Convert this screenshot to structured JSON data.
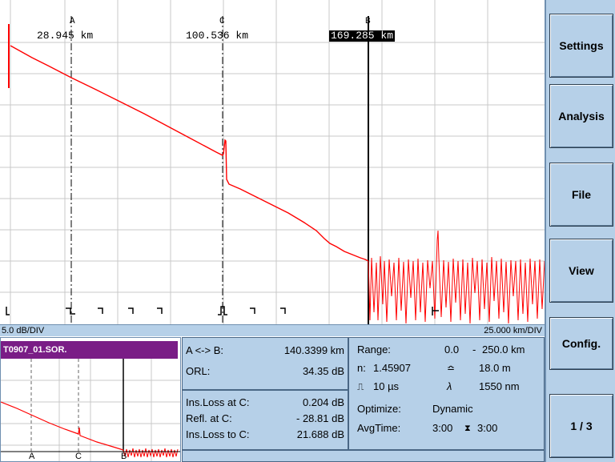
{
  "markers": {
    "a": {
      "letter": "A",
      "distance": "28.945 km"
    },
    "c": {
      "letter": "C",
      "distance": "100.536 km"
    },
    "b": {
      "letter": "B",
      "distance": "169.285 km"
    }
  },
  "scale": {
    "vertical": "5.0 dB/DIV",
    "horizontal": "25.000 km/DIV"
  },
  "side_menu": {
    "settings": "Settings",
    "analysis": "Analysis",
    "file": "File",
    "view": "View",
    "config": "Config.",
    "page": "1 / 3"
  },
  "overview": {
    "filename": "T0907_01.SOR.",
    "letters": {
      "a": "A",
      "c": "C",
      "b": "B"
    }
  },
  "measurements": {
    "ab_label": "A <-> B:",
    "ab_value": "140.3399 km",
    "orl_label": "ORL:",
    "orl_value": "34.35 dB",
    "ins_loss_c_label": "Ins.Loss at C:",
    "ins_loss_c_value": "0.204 dB",
    "refl_c_label": "Refl. at C:",
    "refl_c_value": "- 28.81 dB",
    "ins_loss_to_c_label": "Ins.Loss to C:",
    "ins_loss_to_c_value": "21.688 dB"
  },
  "acquisition": {
    "range_label": "Range:",
    "range_from": "0.0",
    "range_sep": "-",
    "range_to": "250.0 km",
    "n_label": "n:",
    "n_value": "1.45907",
    "deadzone_value": "18.0 m",
    "pulse_value": "10 µs",
    "wavelength_value": "1550 nm",
    "optimize_label": "Optimize:",
    "optimize_value": "Dynamic",
    "avgtime_label": "AvgTime:",
    "avgtime_value": "3:00",
    "avgtime_total": "3:00"
  },
  "colors": {
    "trace": "#ff0000",
    "panel": "#b6d0e8",
    "title_bar": "#7a1d86"
  }
}
